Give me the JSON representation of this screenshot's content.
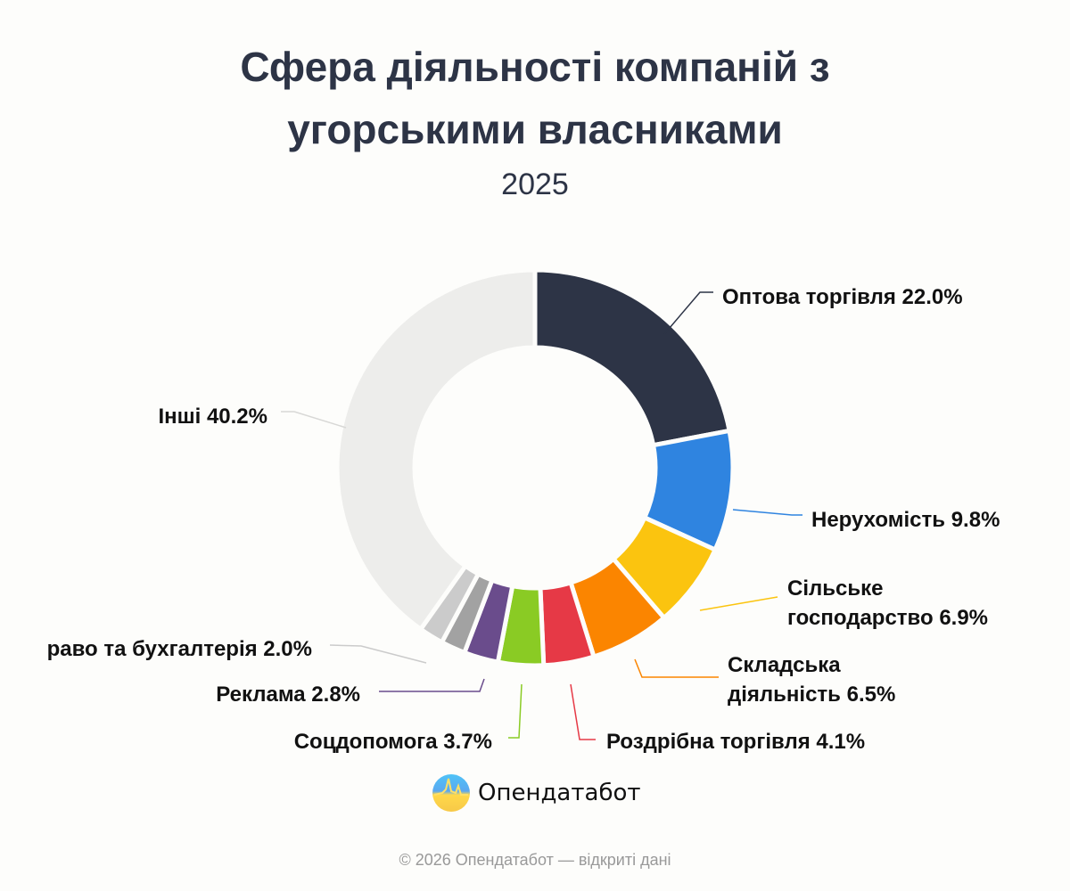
{
  "chart_data": {
    "type": "pie",
    "variant": "donut",
    "title": "Сфера діяльності компаній з угорськими власниками",
    "subtitle": "2025",
    "slices": [
      {
        "label": "Оптова торгівля 22.0%",
        "value": 22.0,
        "color": "#2d3446"
      },
      {
        "label": "Нерухомість 9.8%",
        "value": 9.8,
        "color": "#2f84e0"
      },
      {
        "label": "Сільське господарство 6.9%",
        "label_lines": [
          "Сільське",
          "господарство 6.9%"
        ],
        "value": 6.9,
        "color": "#fbc40f"
      },
      {
        "label": "Складська діяльність 6.5%",
        "label_lines": [
          "Складська",
          "діяльність 6.5%"
        ],
        "value": 6.5,
        "color": "#fb8500"
      },
      {
        "label": "Роздрібна торгівля 4.1%",
        "value": 4.1,
        "color": "#e63946"
      },
      {
        "label": "Соцдопомога 3.7%",
        "value": 3.7,
        "color": "#8acb24"
      },
      {
        "label": "Реклама 2.8%",
        "value": 2.8,
        "color": "#6a4c8c"
      },
      {
        "label": "",
        "value": 2.0,
        "color": "#a2a2a2"
      },
      {
        "label": "раво та бухгалтерія 2.0%",
        "value": 2.0,
        "color": "#cbcbcb"
      },
      {
        "label": "Інші 40.2%",
        "value": 40.2,
        "color": "#ededeb"
      }
    ]
  },
  "brand": {
    "name": "Опендатабот",
    "icon": "opendatabot-logo"
  },
  "footer": "© 2026 Опендатабот — відкриті дані"
}
